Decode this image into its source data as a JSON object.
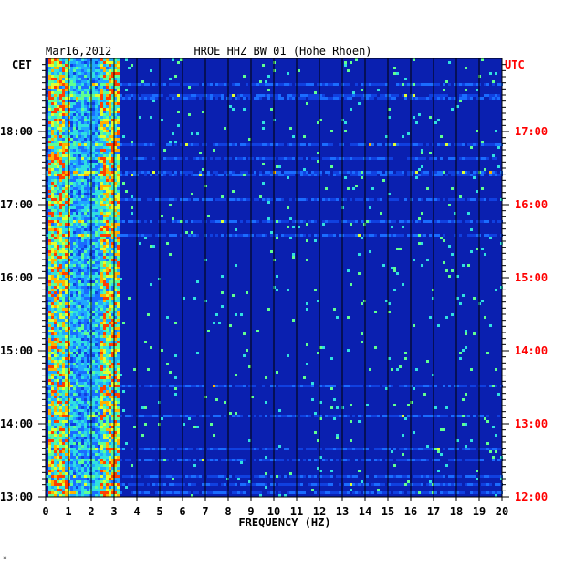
{
  "chart_data": {
    "type": "heatmap",
    "station_title": "HROE HHZ BW 01 (Hohe Rhoen)",
    "date": "Mar16,2012",
    "xlabel": "FREQUENCY (HZ)",
    "x_ticks": [
      "0",
      "1",
      "2",
      "3",
      "4",
      "5",
      "6",
      "7",
      "8",
      "9",
      "10",
      "11",
      "12",
      "13",
      "14",
      "15",
      "16",
      "17",
      "18",
      "19",
      "20"
    ],
    "xlim": [
      0,
      20
    ],
    "left_axis_label": "CET",
    "right_axis_label": "UTC",
    "left_time_ticks": [
      "13:00",
      "14:00",
      "15:00",
      "16:00",
      "17:00",
      "18:00"
    ],
    "right_time_ticks": [
      "12:00",
      "13:00",
      "14:00",
      "15:00",
      "16:00",
      "17:00"
    ],
    "time_range_cet": [
      "13:00",
      "18:50"
    ],
    "colors": {
      "background": "#0a20b0",
      "right_axis": "#ff0000",
      "left_axis": "#000000",
      "gridline": "#000000"
    },
    "strong_bands_hz": [
      {
        "from": 0.1,
        "to": 1.0,
        "level": "high"
      },
      {
        "from": 2.4,
        "to": 3.2,
        "level": "high"
      },
      {
        "from": 1.0,
        "to": 2.4,
        "level": "medium"
      }
    ]
  },
  "footer_mark": "*"
}
